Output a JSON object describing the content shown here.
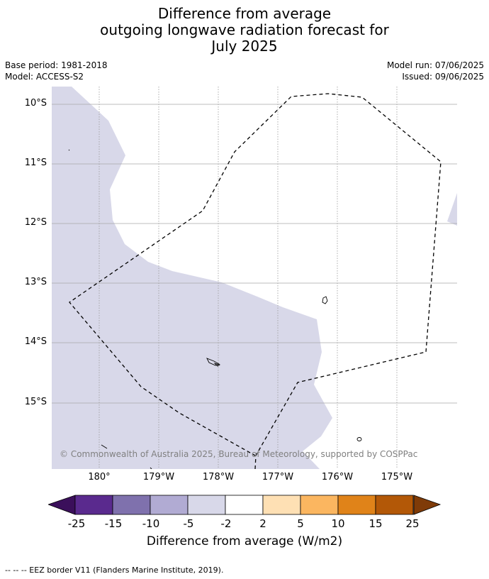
{
  "title": {
    "line1": "Difference from average",
    "line2": "outgoing longwave radiation forecast for",
    "line3": "July 2025"
  },
  "meta": {
    "base_period": "Base period: 1981-2018",
    "model": "Model: ACCESS-S2",
    "model_run": "Model run: 07/06/2025",
    "issued": "Issued: 09/06/2025"
  },
  "map": {
    "lat_labels": [
      "10°S",
      "11°S",
      "12°S",
      "13°S",
      "14°S",
      "15°S"
    ],
    "lon_labels": [
      "180°",
      "179°W",
      "178°W",
      "177°W",
      "176°W",
      "175°W"
    ],
    "attribution": "© Commonwealth of Australia 2025, Bureau of Meteorology, supported by COSPPac",
    "anomaly_fill_color": "#d8d8e9",
    "eez_style": "dashed black line"
  },
  "colorbar": {
    "ticks": [
      "-25",
      "-15",
      "-10",
      "-5",
      "-2",
      "2",
      "5",
      "10",
      "15",
      "25"
    ],
    "colors": [
      "#3b0f5b",
      "#5a2a8e",
      "#7f71ad",
      "#b1abd3",
      "#d8d8e9",
      "#ffffff",
      "#fee0b4",
      "#fbb660",
      "#e08319",
      "#b35807",
      "#7f3b08"
    ],
    "label": "Difference from average (W/m2)"
  },
  "footer": "--  --  -- EEZ border V11 (Flanders Marine Institute, 2019)."
}
